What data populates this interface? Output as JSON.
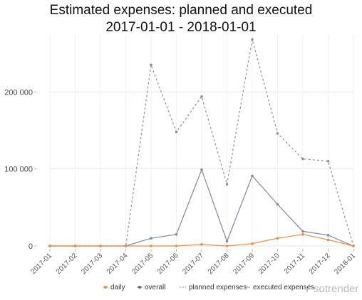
{
  "chart_data": {
    "type": "line",
    "title_line1": "Estimated expenses: planned and executed",
    "title_line2": "2017-01-01 - 2018-01-01",
    "categories": [
      "2017-01",
      "2017-02",
      "2017-03",
      "2017-04",
      "2017-05",
      "2017-06",
      "2017-07",
      "2017-08",
      "2017-09",
      "2017-10",
      "2017-11",
      "2017-12",
      "2018-01"
    ],
    "y_ticks": [
      {
        "value": 0,
        "label": "0"
      },
      {
        "value": 100000,
        "label": "100 000"
      },
      {
        "value": 200000,
        "label": "200 000"
      }
    ],
    "ylim": [
      0,
      275000
    ],
    "grid": true,
    "legend_position": "bottom",
    "series": [
      {
        "name": "planned expenses",
        "color": "#8a8fa3",
        "style": "dashed",
        "values": [
          0,
          0,
          0,
          0,
          235000,
          148000,
          194000,
          80000,
          268000,
          146000,
          113000,
          110000,
          0
        ]
      },
      {
        "name": "overall",
        "color": "#7f86a8",
        "style": "solid",
        "values": [
          0,
          0,
          0,
          0,
          10000,
          15000,
          99000,
          6000,
          91000,
          54000,
          19000,
          14000,
          0
        ]
      },
      {
        "name": "daily",
        "color": "#f08a3a",
        "style": "solid",
        "values": [
          0,
          0,
          0,
          0,
          0,
          0,
          2000,
          0,
          3000,
          10000,
          15000,
          8000,
          0
        ]
      }
    ],
    "legend": [
      {
        "label": "daily",
        "marker": "dot",
        "color": "#f08a3a"
      },
      {
        "label": "overall",
        "marker": "dot",
        "color": "#5d6585"
      },
      {
        "label": "planned expenses",
        "marker": "dash",
        "color": "#8a8fa3"
      },
      {
        "label": "executed expenses",
        "marker": "line",
        "color": "#8a8fa3"
      }
    ]
  },
  "brand": {
    "text": "sotrender",
    "color": "#b8b8b8"
  }
}
